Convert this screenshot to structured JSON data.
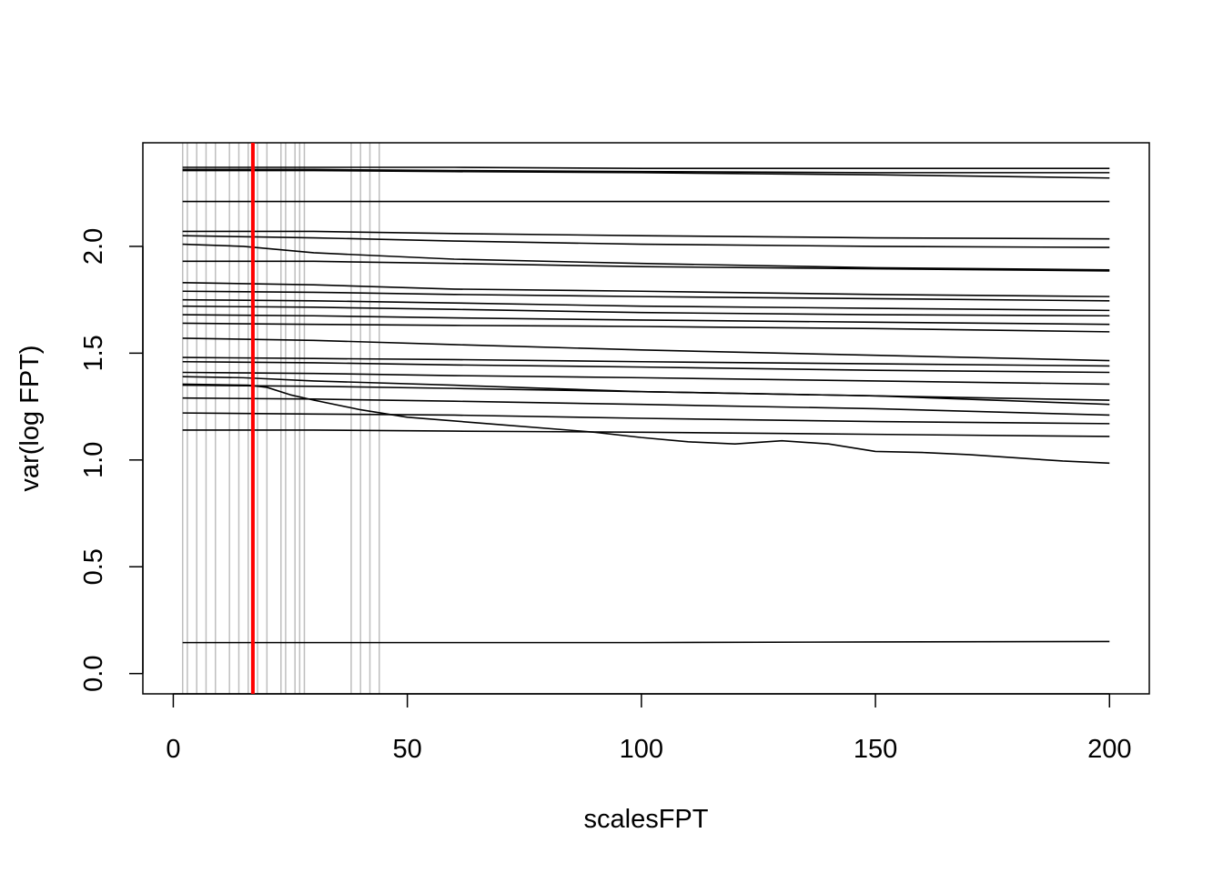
{
  "chart_data": {
    "type": "line",
    "title": "",
    "xlabel": "scalesFPT",
    "ylabel": "var(log FPT)",
    "xlim": [
      -6.5,
      208.5
    ],
    "ylim": [
      -0.095,
      2.485
    ],
    "x_ticks": [
      "0",
      "50",
      "100",
      "150",
      "200"
    ],
    "y_ticks": [
      "0.0",
      "0.5",
      "1.0",
      "1.5",
      "2.0"
    ],
    "x_tick_values": [
      0,
      50,
      100,
      150,
      200
    ],
    "y_tick_values": [
      0.0,
      0.5,
      1.0,
      1.5,
      2.0
    ],
    "grid": false,
    "legend": null,
    "line_color": "#000000",
    "reference_line_color": "#bebebe",
    "highlight_line_color": "#ff0000",
    "vertical_reference_lines": [
      2,
      3,
      5,
      7,
      9,
      12,
      14,
      16,
      18,
      20,
      23,
      24,
      26,
      27,
      28,
      38,
      40,
      42,
      44
    ],
    "highlight_line": 17,
    "series": [
      {
        "x": [
          2,
          30,
          60,
          100,
          150,
          200
        ],
        "values": [
          2.37,
          2.37,
          2.37,
          2.365,
          2.365,
          2.365
        ]
      },
      {
        "x": [
          2,
          30,
          60,
          100,
          150,
          200
        ],
        "values": [
          2.36,
          2.36,
          2.355,
          2.35,
          2.345,
          2.345
        ]
      },
      {
        "x": [
          2,
          30,
          60,
          100,
          150,
          200
        ],
        "values": [
          2.355,
          2.355,
          2.35,
          2.345,
          2.335,
          2.32
        ]
      },
      {
        "x": [
          2,
          50,
          100,
          150,
          200
        ],
        "values": [
          2.21,
          2.21,
          2.21,
          2.21,
          2.21
        ]
      },
      {
        "x": [
          2,
          30,
          60,
          100,
          150,
          200
        ],
        "values": [
          2.07,
          2.07,
          2.06,
          2.05,
          2.04,
          2.035
        ]
      },
      {
        "x": [
          2,
          30,
          60,
          100,
          150,
          200
        ],
        "values": [
          2.05,
          2.04,
          2.025,
          2.01,
          2.0,
          1.995
        ]
      },
      {
        "x": [
          2,
          15,
          30,
          60,
          100,
          150,
          200
        ],
        "values": [
          2.01,
          2.0,
          1.97,
          1.94,
          1.92,
          1.9,
          1.89
        ]
      },
      {
        "x": [
          2,
          30,
          60,
          100,
          150,
          200
        ],
        "values": [
          1.93,
          1.93,
          1.92,
          1.905,
          1.895,
          1.885
        ]
      },
      {
        "x": [
          2,
          30,
          60,
          100,
          150,
          200
        ],
        "values": [
          1.83,
          1.82,
          1.8,
          1.79,
          1.775,
          1.765
        ]
      },
      {
        "x": [
          2,
          30,
          60,
          100,
          150,
          200
        ],
        "values": [
          1.79,
          1.785,
          1.775,
          1.765,
          1.755,
          1.745
        ]
      },
      {
        "x": [
          2,
          30,
          60,
          100,
          150,
          200
        ],
        "values": [
          1.75,
          1.745,
          1.735,
          1.72,
          1.71,
          1.7
        ]
      },
      {
        "x": [
          2,
          30,
          60,
          100,
          150,
          200
        ],
        "values": [
          1.72,
          1.715,
          1.705,
          1.69,
          1.68,
          1.675
        ]
      },
      {
        "x": [
          2,
          30,
          60,
          100,
          150,
          200
        ],
        "values": [
          1.68,
          1.675,
          1.665,
          1.655,
          1.645,
          1.635
        ]
      },
      {
        "x": [
          2,
          30,
          60,
          100,
          150,
          200
        ],
        "values": [
          1.64,
          1.635,
          1.63,
          1.625,
          1.615,
          1.6
        ]
      },
      {
        "x": [
          2,
          30,
          60,
          100,
          150,
          200
        ],
        "values": [
          1.57,
          1.56,
          1.54,
          1.515,
          1.49,
          1.465
        ]
      },
      {
        "x": [
          2,
          30,
          60,
          100,
          150,
          200
        ],
        "values": [
          1.48,
          1.475,
          1.47,
          1.46,
          1.45,
          1.44
        ]
      },
      {
        "x": [
          2,
          30,
          60,
          100,
          150,
          200
        ],
        "values": [
          1.46,
          1.455,
          1.445,
          1.435,
          1.42,
          1.41
        ]
      },
      {
        "x": [
          2,
          30,
          60,
          100,
          150,
          200
        ],
        "values": [
          1.41,
          1.405,
          1.395,
          1.385,
          1.37,
          1.355
        ]
      },
      {
        "x": [
          2,
          15,
          30,
          60,
          100,
          150,
          200
        ],
        "values": [
          1.39,
          1.385,
          1.37,
          1.35,
          1.32,
          1.3,
          1.28
        ]
      },
      {
        "x": [
          2,
          30,
          60,
          100,
          150,
          200
        ],
        "values": [
          1.35,
          1.345,
          1.335,
          1.32,
          1.3,
          1.26
        ]
      },
      {
        "x": [
          2,
          30,
          60,
          100,
          150,
          200
        ],
        "values": [
          1.29,
          1.285,
          1.275,
          1.26,
          1.24,
          1.21
        ]
      },
      {
        "x": [
          2,
          30,
          60,
          100,
          150,
          200
        ],
        "values": [
          1.22,
          1.215,
          1.21,
          1.195,
          1.18,
          1.17
        ]
      },
      {
        "x": [
          2,
          30,
          60,
          100,
          150,
          200
        ],
        "values": [
          1.14,
          1.14,
          1.135,
          1.13,
          1.12,
          1.11
        ]
      },
      {
        "x": [
          2,
          16,
          20,
          25,
          30,
          40,
          50,
          70,
          90,
          100,
          110,
          120,
          130,
          140,
          150,
          160,
          170,
          180,
          190,
          200
        ],
        "values": [
          1.355,
          1.35,
          1.34,
          1.305,
          1.28,
          1.235,
          1.2,
          1.165,
          1.13,
          1.105,
          1.085,
          1.075,
          1.09,
          1.075,
          1.04,
          1.035,
          1.025,
          1.01,
          0.995,
          0.985
        ]
      },
      {
        "x": [
          2,
          50,
          100,
          150,
          200
        ],
        "values": [
          0.145,
          0.145,
          0.145,
          0.148,
          0.15
        ]
      }
    ]
  }
}
